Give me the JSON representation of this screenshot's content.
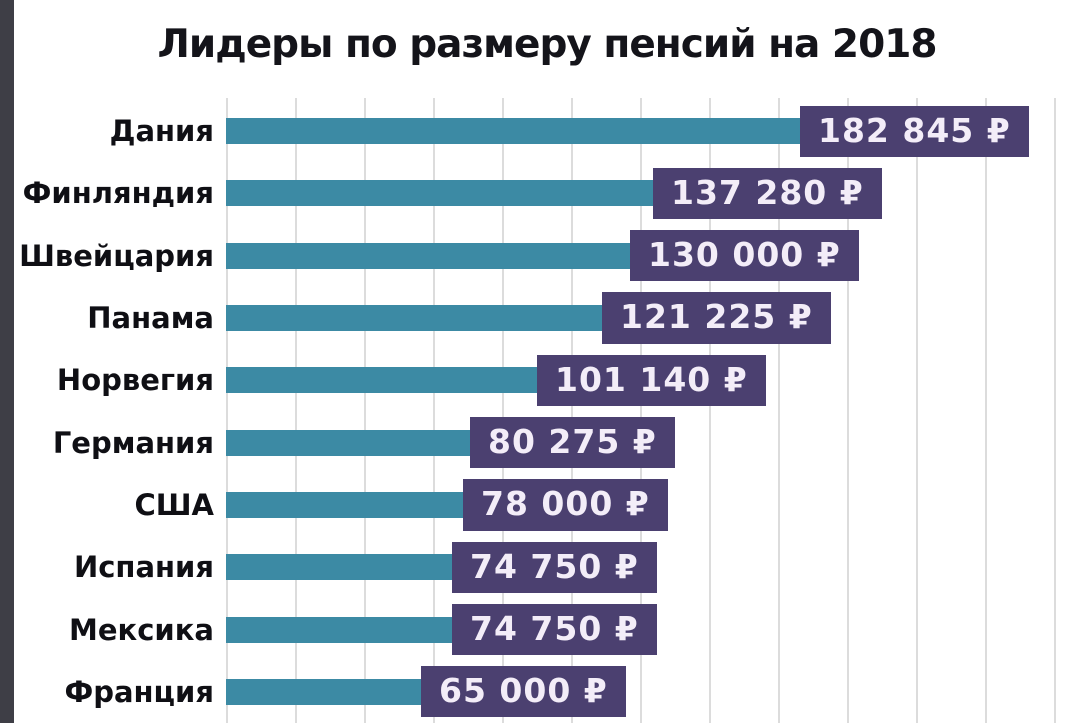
{
  "chart_data": {
    "type": "bar",
    "orientation": "horizontal",
    "title": "Лидеры по размеру пенсий на 2018",
    "categories": [
      "Дания",
      "Финляндия",
      "Швейцария",
      "Панама",
      "Норвегия",
      "Германия",
      "США",
      "Испания",
      "Мексика",
      "Франция"
    ],
    "values": [
      182845,
      137280,
      130000,
      121225,
      101140,
      80275,
      78000,
      74750,
      74750,
      65000
    ],
    "value_labels": [
      "182 845 ₽",
      "137 280 ₽",
      "130 000 ₽",
      "121 225 ₽",
      "101 140 ₽",
      "80 275 ₽",
      "78 000 ₽",
      "74 750 ₽",
      "74 750 ₽",
      "65 000 ₽"
    ],
    "currency_symbol": "₽",
    "xlim": [
      0,
      190000
    ],
    "grid": true,
    "legend": "none",
    "colors": {
      "bar": "#3c8aa4",
      "label_box": "#4b4070",
      "label_text": "#f3edf8",
      "grid": "#dcdcdc",
      "title": "#14141a"
    }
  }
}
